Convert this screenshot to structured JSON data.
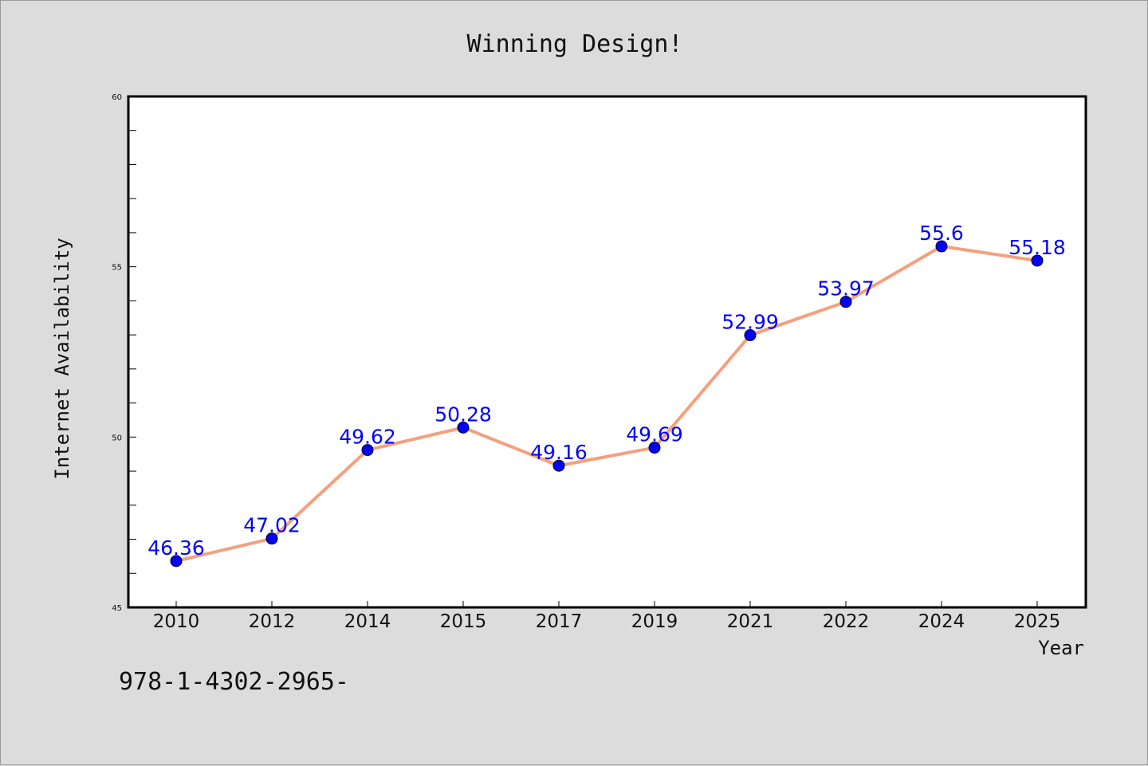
{
  "chart_data": {
    "type": "line",
    "title": "Winning Design!",
    "xlabel": "Year",
    "ylabel": "Internet Availability",
    "categories": [
      "2010",
      "2012",
      "2014",
      "2015",
      "2017",
      "2019",
      "2021",
      "2022",
      "2024",
      "2025"
    ],
    "series": [
      {
        "values": [
          46.36,
          47.02,
          49.62,
          50.28,
          49.16,
          49.69,
          52.99,
          53.97,
          55.6,
          55.18
        ],
        "labels": [
          "46.36",
          "47.02",
          "49.62",
          "50.28",
          "49.16",
          "49.69",
          "52.99",
          "53.97",
          "55.6",
          "55.18"
        ]
      }
    ],
    "ylim": [
      45,
      60
    ],
    "yticks": [
      "45",
      "50",
      "55",
      "60"
    ],
    "grid": false,
    "legend": "none",
    "colors": {
      "line": "#f4a07e",
      "marker": "#0000ff",
      "data_label": "#0000ff",
      "background": "#dcdcdc",
      "plot_area": "#ffffff"
    }
  },
  "footnote": "978-1-4302-2965-"
}
